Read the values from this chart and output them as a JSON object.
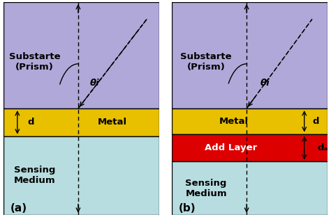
{
  "background_color": "#ffffff",
  "prism_color": "#b0a8d8",
  "metal_color": "#e8c000",
  "add_layer_color": "#dd0000",
  "sensing_color": "#b8dde0",
  "label_a": "(a)",
  "label_b": "(b)",
  "prism_label": "Substarte\n(Prism)",
  "metal_label": "Metal",
  "add_layer_label": "Add Layer",
  "sensing_label": "Sensing\nMedium",
  "theta_label": "θi",
  "d_label": "d",
  "da_label": "dₐ",
  "fig_width": 4.74,
  "fig_height": 3.12,
  "dpi": 100
}
